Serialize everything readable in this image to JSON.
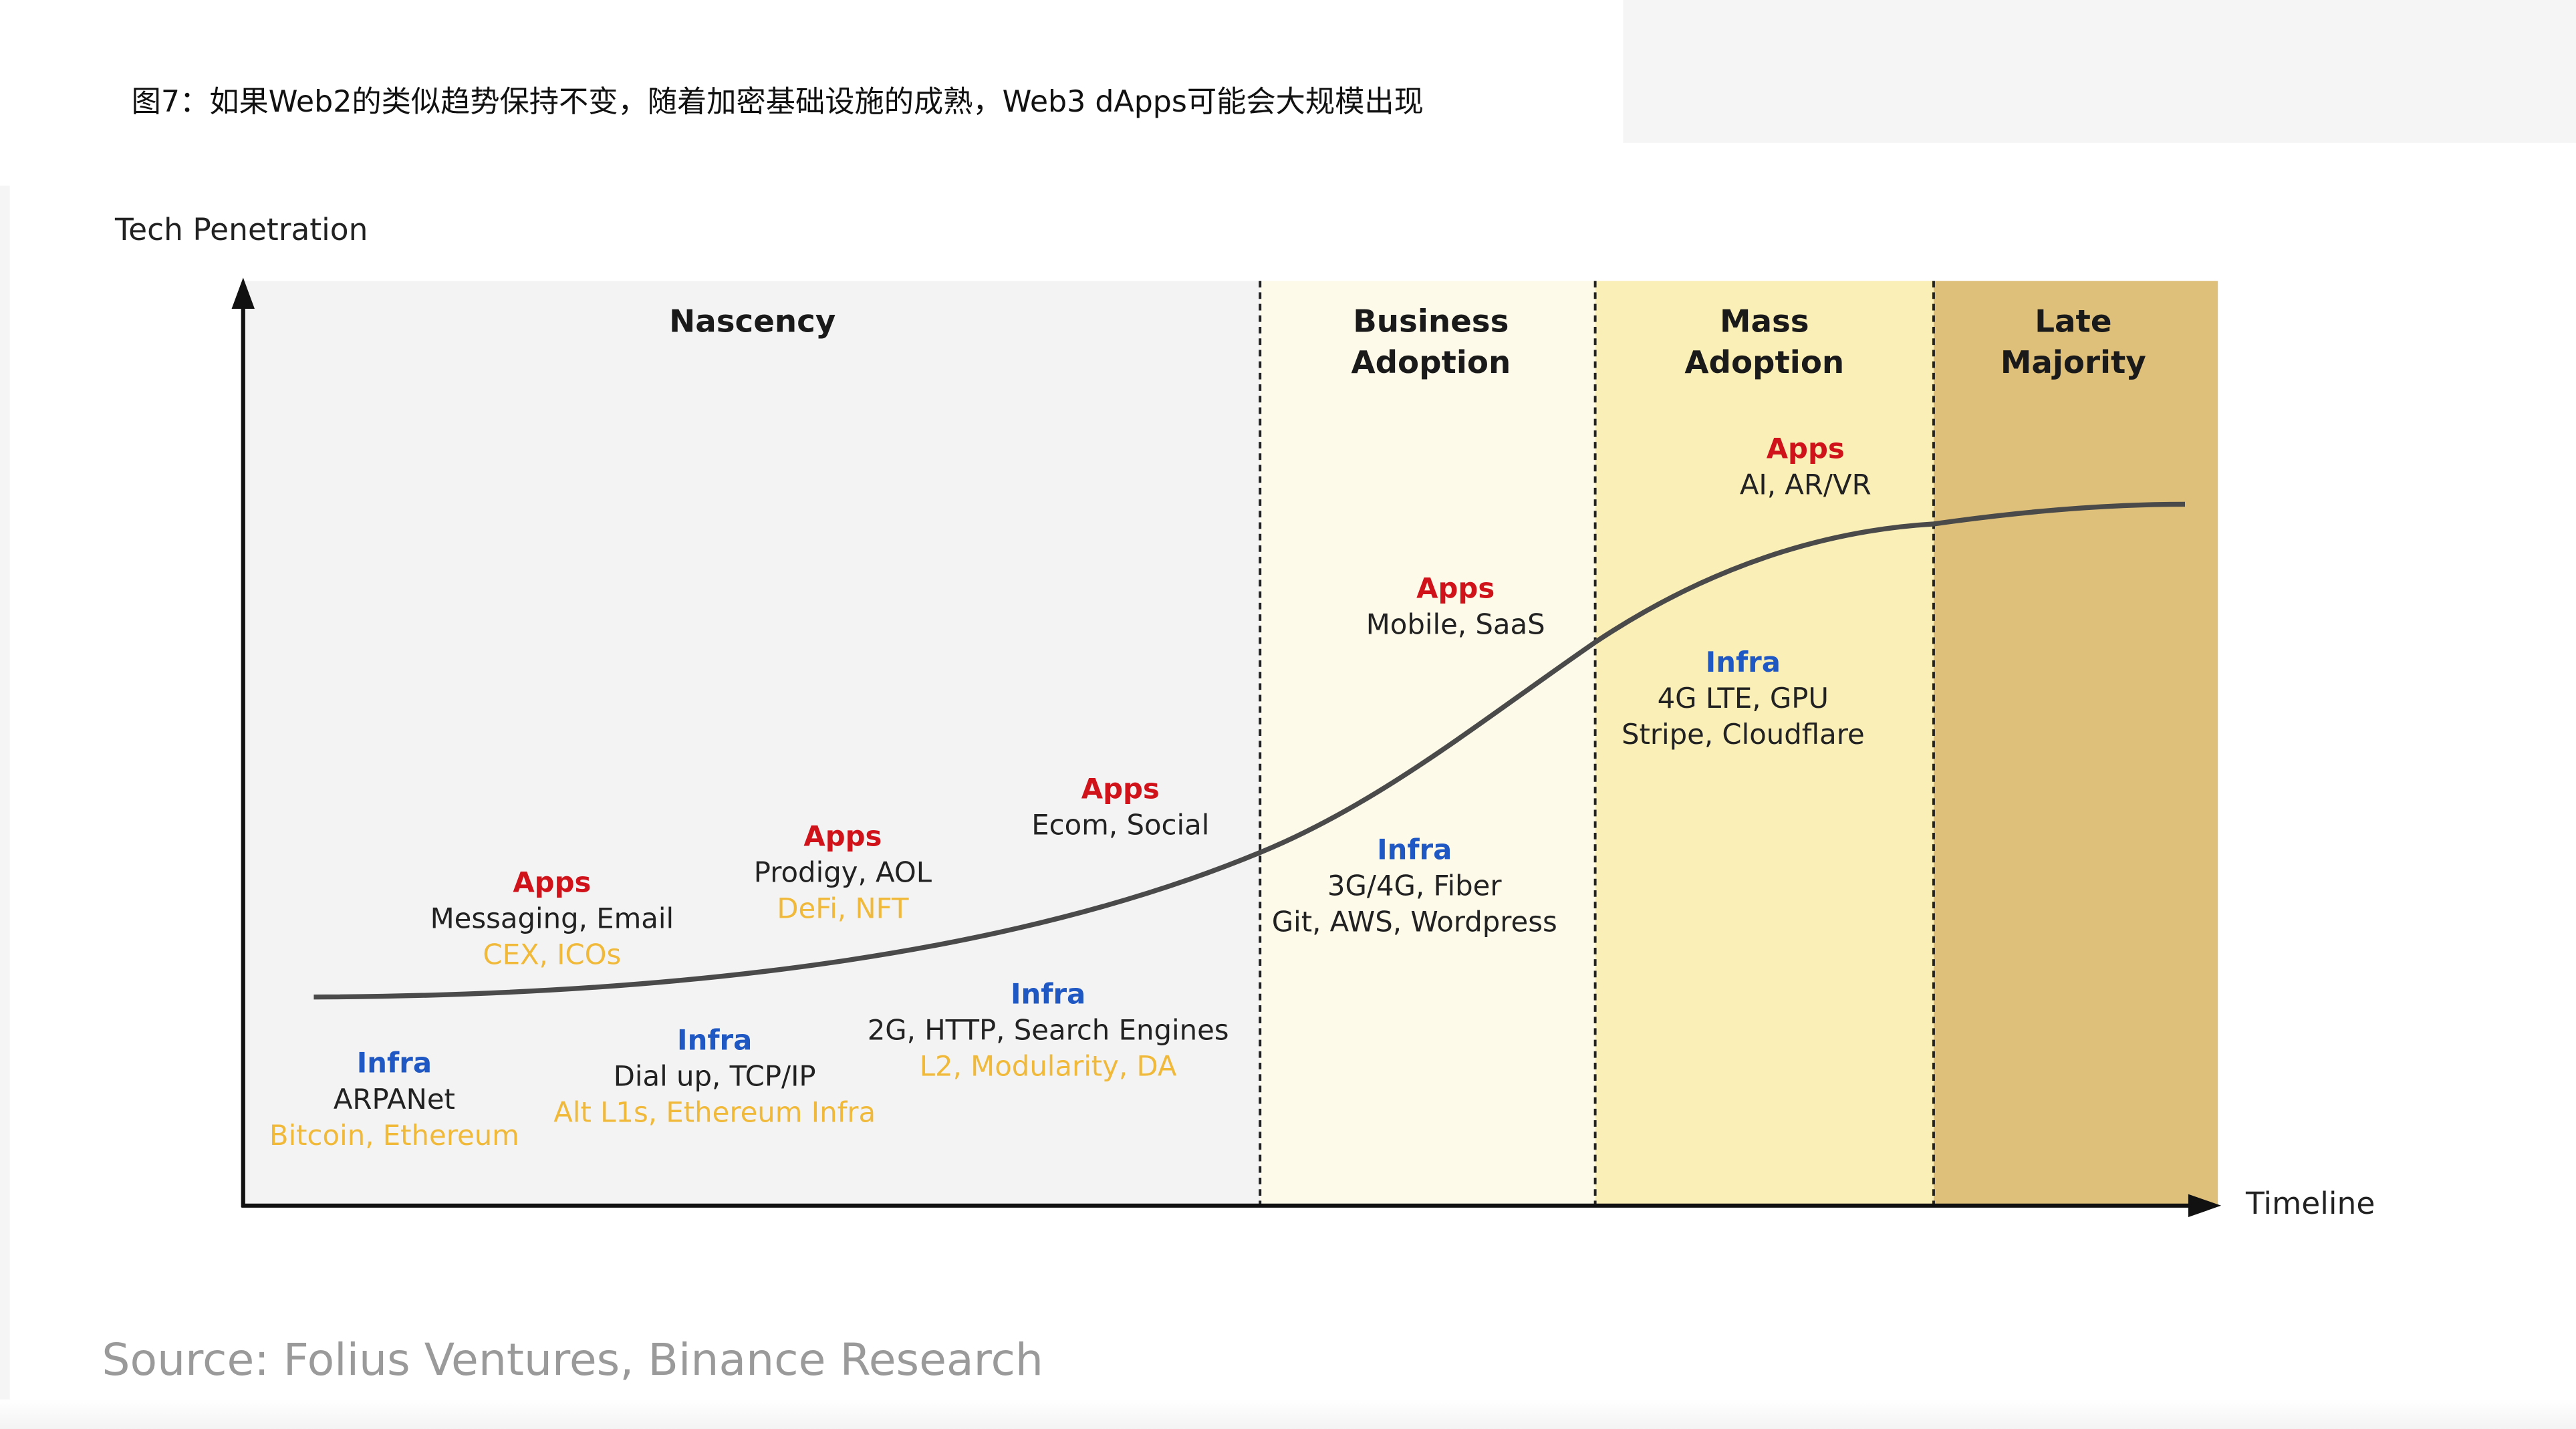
{
  "header": {
    "title": "图7：如果Web2的类似趋势保持不变，随着加密基础设施的成熟，Web3 dApps可能会大规模出现"
  },
  "axes": {
    "y_label": "Tech Penetration",
    "x_label": "Timeline"
  },
  "phases": [
    {
      "id": "nascency",
      "title": "Nascency",
      "color": "#f3f3f3"
    },
    {
      "id": "business",
      "title": "Business\nAdoption",
      "color": "#fefaea"
    },
    {
      "id": "mass",
      "title": "Mass\nAdoption",
      "color": "#fbefb8"
    },
    {
      "id": "late",
      "title": "Late\nMajority",
      "color": "#dec07a"
    }
  ],
  "annotations": {
    "apps_1": {
      "heading": "Apps",
      "lines": [
        "Messaging, Email"
      ],
      "web3": "CEX, ICOs"
    },
    "apps_2": {
      "heading": "Apps",
      "lines": [
        "Prodigy, AOL"
      ],
      "web3": "DeFi, NFT"
    },
    "apps_3": {
      "heading": "Apps",
      "lines": [
        "Ecom, Social"
      ]
    },
    "apps_4": {
      "heading": "Apps",
      "lines": [
        "Mobile, SaaS"
      ]
    },
    "apps_5": {
      "heading": "Apps",
      "lines": [
        "AI, AR/VR"
      ]
    },
    "infra_1": {
      "heading": "Infra",
      "lines": [
        "ARPANet"
      ],
      "web3": "Bitcoin, Ethereum"
    },
    "infra_2": {
      "heading": "Infra",
      "lines": [
        "Dial up, TCP/IP"
      ],
      "web3": "Alt L1s, Ethereum Infra"
    },
    "infra_3": {
      "heading": "Infra",
      "lines": [
        "2G, HTTP, Search Engines"
      ],
      "web3": "L2, Modularity, DA"
    },
    "infra_4": {
      "heading": "Infra",
      "lines": [
        "3G/4G, Fiber",
        "Git, AWS, Wordpress"
      ]
    },
    "infra_5": {
      "heading": "Infra",
      "lines": [
        "4G LTE, GPU",
        "Stripe, Cloudflare"
      ]
    }
  },
  "source": "Source: Folius Ventures, Binance Research",
  "colors": {
    "apps_heading": "#d0121b",
    "infra_heading": "#1f57c3",
    "web3_text": "#f0b93a",
    "curve": "#4a4a4a",
    "axis": "#111111"
  }
}
